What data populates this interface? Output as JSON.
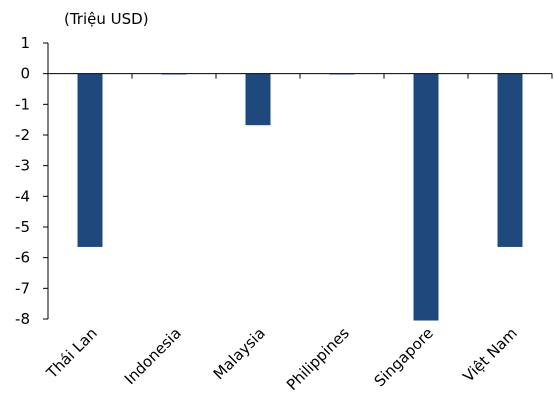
{
  "chart_data": {
    "type": "bar",
    "unit_label": "(Triệu USD)",
    "categories": [
      "Thái Lan",
      "Indonesia",
      "Malaysia",
      "Philippines",
      "Singapore",
      "Việt Nam"
    ],
    "values": [
      -5.65,
      0,
      -1.68,
      -0.02,
      -8.05,
      -5.65
    ],
    "ylim": [
      -8,
      1
    ],
    "yticks": [
      "1",
      "0",
      "-1",
      "-2",
      "-3",
      "-4",
      "-5",
      "-6",
      "-7",
      "-8"
    ],
    "bar_color": "#1f497d",
    "grid": false
  }
}
